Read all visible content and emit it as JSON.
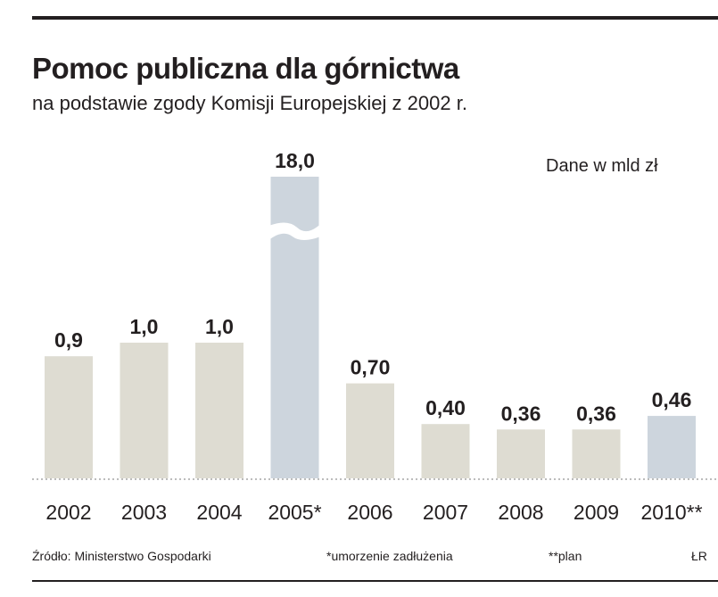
{
  "title": "Pomoc publiczna dla górnictwa",
  "subtitle": "na podstawie zgody Komisji Europejskiej z 2002 r.",
  "units": "Dane w mld zł",
  "footer": {
    "source": "Źródło: Ministerstwo Gospodarki",
    "note1": "*umorzenie zadłużenia",
    "note2": "**plan",
    "credit": "ŁR"
  },
  "chart_data": {
    "type": "bar",
    "categories": [
      "2002",
      "2003",
      "2004",
      "2005*",
      "2006",
      "2007",
      "2008",
      "2009",
      "2010**"
    ],
    "values": [
      0.9,
      1.0,
      1.0,
      18.0,
      0.7,
      0.4,
      0.36,
      0.36,
      0.46
    ],
    "value_labels": [
      "0,9",
      "1,0",
      "1,0",
      "18,0",
      "0,70",
      "0,40",
      "0,36",
      "0,36",
      "0,46"
    ],
    "broken_axis_bar": "2005*",
    "colors": {
      "default": "#dedcd2",
      "highlight": "#cdd5dd",
      "highlighted_categories": [
        "2005*",
        "2010**"
      ]
    },
    "xlabel": "",
    "ylabel": "",
    "grid": false
  }
}
